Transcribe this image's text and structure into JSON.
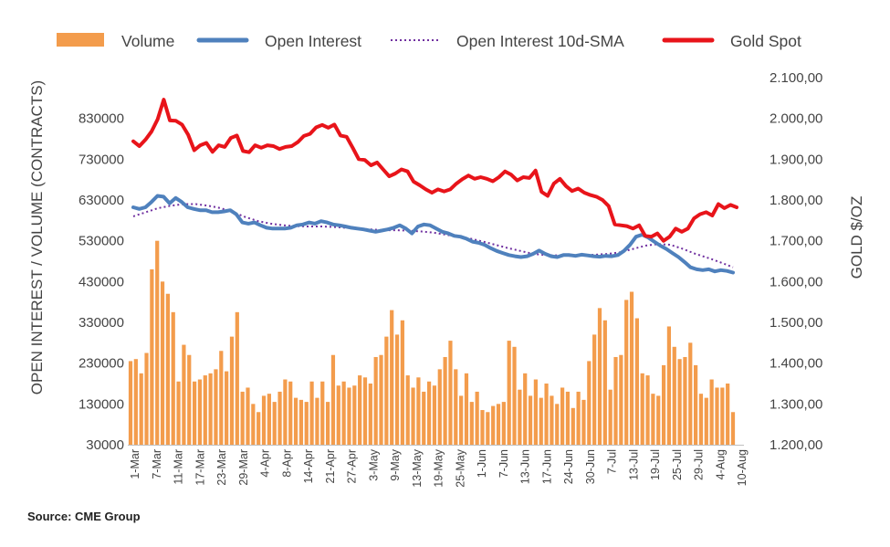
{
  "source": "Source: CME Group",
  "chart_data": {
    "type": "bar+line",
    "xlabel": "",
    "ylabel_left": "OPEN INTEREST / VOLUME (CONTRACTS)",
    "ylabel_right": "GOLD $/OZ",
    "ylim_left": [
      30000,
      930000
    ],
    "ylim_right": [
      1200,
      2100
    ],
    "yticks_left": [
      "30000",
      "130000",
      "230000",
      "330000",
      "430000",
      "530000",
      "630000",
      "730000",
      "830000"
    ],
    "yticks_right": [
      "1.200,00",
      "1.300,00",
      "1.400,00",
      "1.500,00",
      "1.600,00",
      "1.700,00",
      "1.800,00",
      "1.900,00",
      "2.000,00",
      "2.100,00"
    ],
    "x_tick_labels": [
      "1-Mar",
      "7-Mar",
      "11-Mar",
      "17-Mar",
      "23-Mar",
      "29-Mar",
      "4-Apr",
      "8-Apr",
      "14-Apr",
      "21-Apr",
      "27-Apr",
      "3-May",
      "9-May",
      "13-May",
      "19-May",
      "25-May",
      "1-Jun",
      "7-Jun",
      "13-Jun",
      "17-Jun",
      "24-Jun",
      "30-Jun",
      "7-Jul",
      "13-Jul",
      "19-Jul",
      "25-Jul",
      "29-Jul",
      "4-Aug",
      "10-Aug"
    ],
    "grid": false,
    "legend_position": "top",
    "colors": {
      "volume": "#F39C4C",
      "open_interest": "#4F81BD",
      "sma": "#7030A0",
      "gold": "#E8141A"
    },
    "series": [
      {
        "name": "Volume",
        "type": "bar",
        "axis": "left",
        "values": [
          235000,
          240000,
          205000,
          255000,
          460000,
          530000,
          430000,
          400000,
          355000,
          185000,
          275000,
          250000,
          185000,
          190000,
          200000,
          205000,
          215000,
          260000,
          210000,
          295000,
          355000,
          160000,
          170000,
          130000,
          110000,
          150000,
          155000,
          135000,
          160000,
          190000,
          185000,
          145000,
          140000,
          135000,
          185000,
          145000,
          185000,
          135000,
          250000,
          175000,
          185000,
          170000,
          175000,
          200000,
          195000,
          180000,
          245000,
          250000,
          295000,
          360000,
          300000,
          335000,
          200000,
          170000,
          195000,
          160000,
          185000,
          175000,
          215000,
          245000,
          285000,
          215000,
          150000,
          205000,
          135000,
          160000,
          115000,
          110000,
          125000,
          130000,
          135000,
          285000,
          270000,
          165000,
          205000,
          150000,
          190000,
          145000,
          180000,
          150000,
          130000,
          170000,
          160000,
          120000,
          160000,
          140000,
          235000,
          300000,
          365000,
          335000,
          165000,
          245000,
          250000,
          385000,
          405000,
          340000,
          205000,
          200000,
          155000,
          150000,
          225000,
          320000,
          270000,
          240000,
          245000,
          280000,
          225000,
          155000,
          145000,
          190000,
          170000,
          170000,
          180000,
          110000
        ]
      },
      {
        "name": "Open Interest",
        "type": "line",
        "axis": "left",
        "values": [
          612000,
          608000,
          612000,
          625000,
          640000,
          638000,
          622000,
          635000,
          625000,
          612000,
          608000,
          605000,
          605000,
          600000,
          600000,
          602000,
          605000,
          595000,
          575000,
          572000,
          575000,
          568000,
          562000,
          560000,
          560000,
          560000,
          562000,
          568000,
          570000,
          575000,
          572000,
          578000,
          575000,
          570000,
          568000,
          565000,
          562000,
          560000,
          558000,
          555000,
          552000,
          555000,
          558000,
          562000,
          568000,
          560000,
          548000,
          565000,
          570000,
          568000,
          560000,
          552000,
          548000,
          542000,
          540000,
          535000,
          528000,
          525000,
          520000,
          512000,
          505000,
          500000,
          495000,
          492000,
          490000,
          492000,
          498000,
          506000,
          498000,
          492000,
          490000,
          495000,
          495000,
          493000,
          496000,
          494000,
          492000,
          491000,
          493000,
          492000,
          495000,
          505000,
          520000,
          540000,
          545000,
          538000,
          528000,
          518000,
          510000,
          500000,
          490000,
          478000,
          465000,
          460000,
          458000,
          460000,
          455000,
          458000,
          456000,
          452000
        ]
      },
      {
        "name": "Open Interest 10d-SMA",
        "type": "line",
        "style": "dotted",
        "axis": "left",
        "values": [
          590000,
          600000,
          610000,
          616000,
          620000,
          620000,
          616000,
          610000,
          600000,
          588000,
          578000,
          572000,
          568000,
          566000,
          565000,
          565000,
          564000,
          562000,
          560000,
          558000,
          556000,
          556000,
          555000,
          553000,
          550000,
          545000,
          540000,
          535000,
          528000,
          520000,
          512000,
          505000,
          498000,
          495000,
          494000,
          493000,
          494000,
          496000,
          498000,
          502000,
          510000,
          518000,
          522000,
          520000,
          510000,
          498000,
          488000,
          477000,
          465000
        ]
      },
      {
        "name": "Gold Spot",
        "type": "line",
        "axis": "right",
        "values": [
          1944,
          1932,
          1948,
          1968,
          1998,
          2046,
          1995,
          1994,
          1985,
          1960,
          1922,
          1934,
          1940,
          1918,
          1934,
          1930,
          1952,
          1958,
          1920,
          1917,
          1934,
          1928,
          1934,
          1932,
          1925,
          1930,
          1932,
          1942,
          1957,
          1962,
          1978,
          1984,
          1977,
          1985,
          1958,
          1955,
          1928,
          1900,
          1898,
          1885,
          1892,
          1875,
          1858,
          1865,
          1875,
          1870,
          1845,
          1836,
          1826,
          1818,
          1826,
          1821,
          1826,
          1840,
          1851,
          1860,
          1852,
          1856,
          1852,
          1846,
          1856,
          1870,
          1862,
          1848,
          1856,
          1854,
          1872,
          1820,
          1810,
          1840,
          1852,
          1834,
          1822,
          1828,
          1818,
          1812,
          1808,
          1800,
          1785,
          1740,
          1738,
          1736,
          1730,
          1738,
          1712,
          1710,
          1718,
          1700,
          1710,
          1730,
          1722,
          1730,
          1755,
          1765,
          1770,
          1762,
          1790,
          1780,
          1788,
          1782
        ]
      }
    ]
  }
}
